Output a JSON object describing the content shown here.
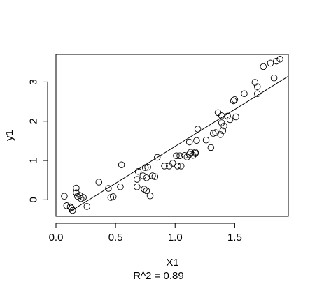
{
  "chart_data": {
    "type": "scatter",
    "xlabel": "X1",
    "ylabel": "y1",
    "caption": "R^2 = 0.89",
    "xlim": [
      0.0,
      1.95
    ],
    "ylim": [
      -0.42,
      3.7
    ],
    "xticks": [
      0.0,
      0.5,
      1.0,
      1.5
    ],
    "xtick_labels": [
      "0.0",
      "0.5",
      "1.0",
      "1.5"
    ],
    "yticks": [
      0,
      1,
      2,
      3
    ],
    "ytick_labels": [
      "0",
      "1",
      "2",
      "3"
    ],
    "grid": false,
    "series": [
      {
        "marker": "open-circle",
        "points": [
          [
            0.07,
            0.09
          ],
          [
            0.09,
            -0.15
          ],
          [
            0.12,
            -0.18
          ],
          [
            0.13,
            -0.21
          ],
          [
            0.14,
            -0.27
          ],
          [
            0.17,
            0.3
          ],
          [
            0.17,
            0.18
          ],
          [
            0.18,
            0.09
          ],
          [
            0.2,
            0.11
          ],
          [
            0.21,
            0.03
          ],
          [
            0.23,
            0.06
          ],
          [
            0.26,
            -0.17
          ],
          [
            0.36,
            0.45
          ],
          [
            0.44,
            0.29
          ],
          [
            0.46,
            0.06
          ],
          [
            0.48,
            0.08
          ],
          [
            0.54,
            0.33
          ],
          [
            0.55,
            0.89
          ],
          [
            0.68,
            0.52
          ],
          [
            0.68,
            0.33
          ],
          [
            0.69,
            0.72
          ],
          [
            0.73,
            0.61
          ],
          [
            0.74,
            0.27
          ],
          [
            0.75,
            0.82
          ],
          [
            0.76,
            0.56
          ],
          [
            0.76,
            0.23
          ],
          [
            0.77,
            0.83
          ],
          [
            0.79,
            0.1
          ],
          [
            0.81,
            0.61
          ],
          [
            0.83,
            0.59
          ],
          [
            0.85,
            1.08
          ],
          [
            0.91,
            0.86
          ],
          [
            0.95,
            0.86
          ],
          [
            0.98,
            0.93
          ],
          [
            1.01,
            1.12
          ],
          [
            1.02,
            0.86
          ],
          [
            1.04,
            1.12
          ],
          [
            1.05,
            0.86
          ],
          [
            1.08,
            1.13
          ],
          [
            1.1,
            1.09
          ],
          [
            1.12,
            1.47
          ],
          [
            1.12,
            1.16
          ],
          [
            1.13,
            1.21
          ],
          [
            1.15,
            1.13
          ],
          [
            1.17,
            1.18
          ],
          [
            1.17,
            1.21
          ],
          [
            1.18,
            1.51
          ],
          [
            1.19,
            1.8
          ],
          [
            1.26,
            1.52
          ],
          [
            1.3,
            1.33
          ],
          [
            1.32,
            1.69
          ],
          [
            1.34,
            1.71
          ],
          [
            1.36,
            2.22
          ],
          [
            1.38,
            1.66
          ],
          [
            1.39,
            1.96
          ],
          [
            1.39,
            2.14
          ],
          [
            1.4,
            1.76
          ],
          [
            1.41,
            1.88
          ],
          [
            1.44,
            2.13
          ],
          [
            1.46,
            2.04
          ],
          [
            1.49,
            2.52
          ],
          [
            1.5,
            2.55
          ],
          [
            1.51,
            2.11
          ],
          [
            1.58,
            2.7
          ],
          [
            1.67,
            2.99
          ],
          [
            1.69,
            2.88
          ],
          [
            1.69,
            2.7
          ],
          [
            1.74,
            3.39
          ],
          [
            1.8,
            3.48
          ],
          [
            1.83,
            3.1
          ],
          [
            1.85,
            3.53
          ],
          [
            1.88,
            3.58
          ]
        ]
      }
    ],
    "regression_line": {
      "intercept": -0.52,
      "slope": 1.88,
      "x_range": [
        0.11,
        1.95
      ]
    }
  }
}
